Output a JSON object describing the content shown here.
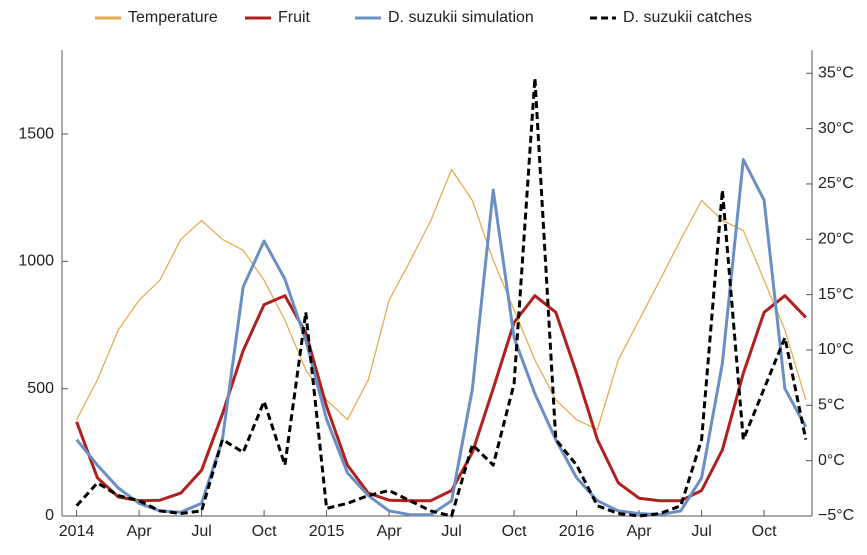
{
  "chart_data": {
    "type": "line",
    "x": [
      0,
      1,
      2,
      3,
      4,
      5,
      6,
      7,
      8,
      9,
      10,
      11,
      12,
      13,
      14,
      15,
      16,
      17,
      18,
      19,
      20,
      21,
      22,
      23,
      24,
      25,
      26,
      27,
      28,
      29,
      30,
      31,
      32,
      33,
      34,
      35
    ],
    "xlim": [
      -0.7,
      35.3
    ],
    "xticks": [
      {
        "value": 0,
        "label": "2014"
      },
      {
        "value": 3,
        "label": "Apr"
      },
      {
        "value": 6,
        "label": "Jul"
      },
      {
        "value": 9,
        "label": "Oct"
      },
      {
        "value": 12,
        "label": "2015"
      },
      {
        "value": 15,
        "label": "Apr"
      },
      {
        "value": 18,
        "label": "Jul"
      },
      {
        "value": 21,
        "label": "Oct"
      },
      {
        "value": 24,
        "label": "2016"
      },
      {
        "value": 27,
        "label": "Apr"
      },
      {
        "value": 30,
        "label": "Jul"
      },
      {
        "value": 33,
        "label": "Oct"
      }
    ],
    "ylim": [
      0,
      1830
    ],
    "yticks": [
      0,
      500,
      1000,
      1500
    ],
    "y2lim": [
      -5,
      37.1
    ],
    "y2ticks": [
      {
        "value": -5,
        "label": "−5°C"
      },
      {
        "value": 0,
        "label": "0°C"
      },
      {
        "value": 5,
        "label": "5°C"
      },
      {
        "value": 10,
        "label": "10°C"
      },
      {
        "value": 15,
        "label": "15°C"
      },
      {
        "value": 20,
        "label": "20°C"
      },
      {
        "value": 25,
        "label": "25°C"
      },
      {
        "value": 30,
        "label": "30°C"
      },
      {
        "value": 35,
        "label": "35°C"
      }
    ],
    "series": [
      {
        "name": "Temperature",
        "color": "#e6ad52",
        "axis": "y2",
        "values": [
          3.7,
          7.3,
          11.8,
          14.5,
          16.3,
          20,
          21.7,
          20,
          19,
          16.3,
          12.7,
          8.2,
          5.5,
          3.7,
          7.3,
          14.5,
          18,
          21.7,
          26.3,
          23.5,
          18.1,
          13.6,
          9.1,
          5.5,
          3.7,
          2.8,
          9.1,
          12.7,
          16.3,
          20,
          23.5,
          21.7,
          20.8,
          16.3,
          11.8,
          5.5
        ]
      },
      {
        "name": "Fruit",
        "color": "#b0201e",
        "values": [
          370,
          150,
          75,
          60,
          62,
          90,
          180,
          400,
          650,
          830,
          865,
          720,
          430,
          200,
          90,
          62,
          60,
          60,
          100,
          250,
          500,
          760,
          865,
          800,
          560,
          300,
          130,
          70,
          60,
          60,
          100,
          260,
          560,
          800,
          865,
          780
        ]
      },
      {
        "name": "D. suzukii simulation",
        "color": "#6a8fc4",
        "values": [
          300,
          200,
          110,
          50,
          20,
          15,
          50,
          300,
          900,
          1080,
          930,
          690,
          380,
          170,
          80,
          20,
          5,
          5,
          60,
          500,
          1280,
          700,
          480,
          300,
          150,
          60,
          20,
          10,
          5,
          20,
          150,
          600,
          1400,
          1240,
          500,
          350
        ]
      },
      {
        "name": "D. suzukii catches",
        "color": "#000000",
        "dash": true,
        "values": [
          40,
          130,
          80,
          60,
          20,
          10,
          20,
          300,
          250,
          450,
          200,
          800,
          30,
          50,
          80,
          100,
          60,
          20,
          0,
          280,
          200,
          520,
          1720,
          300,
          200,
          40,
          10,
          0,
          10,
          40,
          300,
          1280,
          300,
          500,
          700,
          300
        ]
      }
    ],
    "legend": "top"
  }
}
